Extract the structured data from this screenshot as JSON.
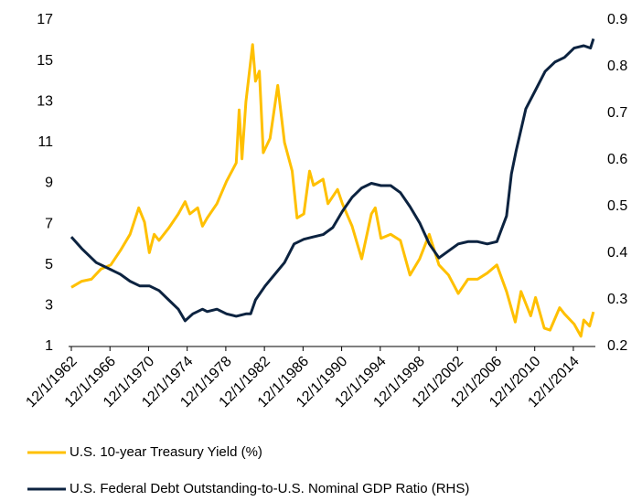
{
  "chart_data": {
    "type": "line",
    "xlim": [
      1962.92,
      2017.2
    ],
    "xticks": [
      {
        "value": 1962.92,
        "label": "12/1/1962"
      },
      {
        "value": 1966.92,
        "label": "12/1/1966"
      },
      {
        "value": 1970.92,
        "label": "12/1/1970"
      },
      {
        "value": 1974.92,
        "label": "12/1/1974"
      },
      {
        "value": 1978.92,
        "label": "12/1/1978"
      },
      {
        "value": 1982.92,
        "label": "12/1/1982"
      },
      {
        "value": 1986.92,
        "label": "12/1/1986"
      },
      {
        "value": 1990.92,
        "label": "12/1/1990"
      },
      {
        "value": 1994.92,
        "label": "12/1/1994"
      },
      {
        "value": 1998.92,
        "label": "12/1/1998"
      },
      {
        "value": 2002.92,
        "label": "12/1/2002"
      },
      {
        "value": 2006.92,
        "label": "12/1/2006"
      },
      {
        "value": 2010.92,
        "label": "12/1/2010"
      },
      {
        "value": 2014.92,
        "label": "12/1/2014"
      }
    ],
    "ylim": [
      1,
      17
    ],
    "yticks": [
      1,
      3,
      5,
      7,
      9,
      11,
      13,
      15,
      17
    ],
    "y2lim": [
      0.2,
      0.9
    ],
    "y2ticks": [
      0.2,
      0.3,
      0.4,
      0.5,
      0.6,
      0.7,
      0.8,
      0.9
    ],
    "series": [
      {
        "name": "U.S. 10-year Treasury Yield (%)",
        "color": "#FFC000",
        "x": [
          1962.92,
          1964,
          1965,
          1966,
          1967,
          1968,
          1969,
          1969.9,
          1970.5,
          1971,
          1971.5,
          1972,
          1973,
          1974,
          1974.7,
          1975.2,
          1976,
          1976.5,
          1977,
          1978,
          1979,
          1980,
          1980.3,
          1980.6,
          1981,
          1981.7,
          1982,
          1982.4,
          1982.8,
          1983.5,
          1984.3,
          1985,
          1985.8,
          1986.3,
          1987,
          1987.6,
          1988,
          1989,
          1989.5,
          1990.5,
          1991,
          1992,
          1993,
          1994,
          1994.4,
          1995,
          1996,
          1997,
          1998,
          1999,
          2000,
          2001,
          2002,
          2003,
          2004,
          2005,
          2006,
          2007,
          2008,
          2008.9,
          2009.5,
          2010.5,
          2011,
          2011.9,
          2012.5,
          2013.5,
          2014,
          2015,
          2015.7,
          2016,
          2016.6,
          2017
        ],
        "values": [
          3.9,
          4.2,
          4.3,
          4.8,
          5.0,
          5.7,
          6.5,
          7.8,
          7.1,
          5.6,
          6.5,
          6.2,
          6.8,
          7.5,
          8.1,
          7.5,
          7.8,
          6.9,
          7.3,
          8.0,
          9.1,
          10.0,
          12.6,
          10.2,
          13.0,
          15.8,
          14.0,
          14.5,
          10.5,
          11.2,
          13.8,
          11.0,
          9.6,
          7.3,
          7.5,
          9.6,
          8.9,
          9.2,
          8.0,
          8.7,
          8.0,
          6.9,
          5.3,
          7.5,
          7.8,
          6.3,
          6.5,
          6.2,
          4.5,
          5.3,
          6.5,
          5.0,
          4.5,
          3.6,
          4.3,
          4.3,
          4.6,
          5.0,
          3.7,
          2.2,
          3.7,
          2.5,
          3.4,
          1.9,
          1.8,
          2.9,
          2.6,
          2.1,
          1.5,
          2.3,
          2.0,
          2.7
        ]
      },
      {
        "name": "U.S. Federal Debt Outstanding-to-U.S. Nominal GDP Ratio (RHS)",
        "color": "#0C2340",
        "axis": "y2",
        "x": [
          1962.92,
          1964,
          1965.5,
          1967,
          1968,
          1969,
          1970,
          1971,
          1972,
          1973,
          1974,
          1974.7,
          1975.5,
          1976.5,
          1977,
          1978,
          1979,
          1980,
          1981,
          1981.5,
          1982,
          1983,
          1984,
          1985,
          1986,
          1987,
          1988,
          1989,
          1990,
          1991,
          1992,
          1993,
          1994,
          1995,
          1996,
          1997,
          1998,
          1999,
          2000,
          2001,
          2002,
          2003,
          2004,
          2005,
          2006,
          2007,
          2008,
          2008.5,
          2009,
          2010,
          2011,
          2012,
          2013,
          2014,
          2015,
          2016,
          2016.7,
          2017
        ],
        "values": [
          0.435,
          0.41,
          0.38,
          0.365,
          0.355,
          0.34,
          0.33,
          0.33,
          0.32,
          0.3,
          0.28,
          0.255,
          0.27,
          0.28,
          0.275,
          0.28,
          0.27,
          0.265,
          0.27,
          0.27,
          0.3,
          0.33,
          0.355,
          0.38,
          0.42,
          0.43,
          0.435,
          0.44,
          0.455,
          0.49,
          0.52,
          0.54,
          0.55,
          0.545,
          0.545,
          0.53,
          0.5,
          0.465,
          0.42,
          0.39,
          0.405,
          0.42,
          0.425,
          0.425,
          0.42,
          0.425,
          0.48,
          0.57,
          0.62,
          0.71,
          0.75,
          0.79,
          0.81,
          0.82,
          0.84,
          0.845,
          0.84,
          0.86
        ]
      }
    ]
  }
}
